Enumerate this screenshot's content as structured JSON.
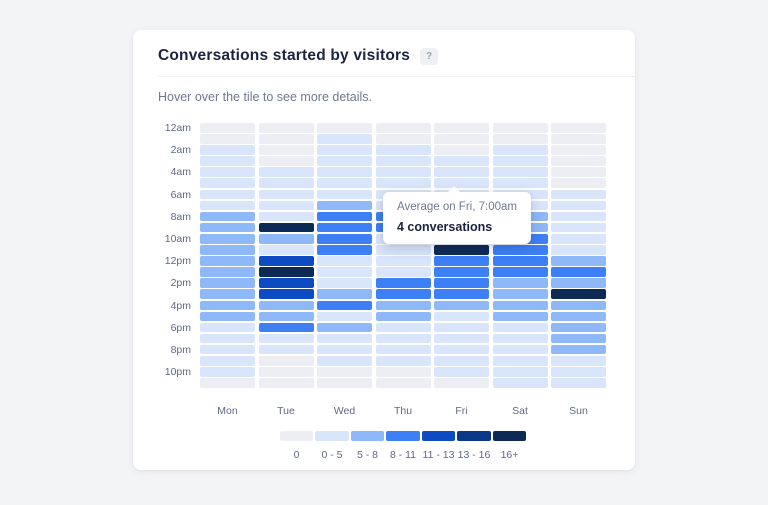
{
  "card": {
    "title": "Conversations started by visitors",
    "help_label": "?",
    "subtitle": "Hover over the tile to see more details."
  },
  "tooltip": {
    "line1": "Average on Fri, 7:00am",
    "line2": "4 conversations"
  },
  "chart_data": {
    "type": "heatmap",
    "title": "Conversations started by visitors",
    "x_labels": [
      "Mon",
      "Tue",
      "Wed",
      "Thu",
      "Fri",
      "Sat",
      "Sun"
    ],
    "y_labels": [
      "12am",
      "2am",
      "4am",
      "6am",
      "8am",
      "10am",
      "12pm",
      "2pm",
      "4pm",
      "6pm",
      "8pm",
      "10pm"
    ],
    "y_unit": "hour of day (24 rows, one per hour, labeled every 2 hours)",
    "legend_position": "bottom-center",
    "legend": [
      {
        "label": "0",
        "color": "#eceef4"
      },
      {
        "label": "0 - 5",
        "color": "#d9e5fa"
      },
      {
        "label": "5 - 8",
        "color": "#8fb8f8"
      },
      {
        "label": "8 - 11",
        "color": "#3d7ff5"
      },
      {
        "label": "11 - 13",
        "color": "#0c4bc2"
      },
      {
        "label": "13 - 16",
        "color": "#0a3787"
      },
      {
        "label": "16+",
        "color": "#0d2a55"
      }
    ],
    "grid_note": "rows = hours 12am..11pm top to bottom; columns = Mon..Sun; values are legend bucket indices 0-6",
    "grid": [
      [
        0,
        0,
        0,
        0,
        0,
        0,
        0
      ],
      [
        0,
        0,
        1,
        0,
        0,
        0,
        0
      ],
      [
        1,
        0,
        1,
        1,
        0,
        1,
        0
      ],
      [
        1,
        0,
        1,
        1,
        1,
        1,
        0
      ],
      [
        1,
        1,
        1,
        1,
        1,
        1,
        0
      ],
      [
        1,
        1,
        1,
        1,
        1,
        1,
        0
      ],
      [
        1,
        1,
        1,
        1,
        1,
        1,
        1
      ],
      [
        1,
        1,
        2,
        1,
        1,
        1,
        1
      ],
      [
        2,
        1,
        3,
        3,
        2,
        2,
        1
      ],
      [
        2,
        6,
        3,
        3,
        3,
        2,
        1
      ],
      [
        2,
        2,
        3,
        1,
        3,
        3,
        1
      ],
      [
        2,
        1,
        3,
        1,
        6,
        3,
        1
      ],
      [
        2,
        4,
        1,
        1,
        3,
        3,
        2
      ],
      [
        2,
        6,
        1,
        1,
        3,
        3,
        3
      ],
      [
        2,
        4,
        1,
        3,
        3,
        2,
        2
      ],
      [
        2,
        4,
        2,
        3,
        3,
        2,
        6
      ],
      [
        2,
        2,
        3,
        2,
        2,
        2,
        2
      ],
      [
        2,
        2,
        1,
        2,
        1,
        2,
        2
      ],
      [
        1,
        3,
        2,
        1,
        1,
        1,
        2
      ],
      [
        1,
        1,
        1,
        1,
        1,
        1,
        2
      ],
      [
        1,
        1,
        1,
        1,
        1,
        1,
        2
      ],
      [
        1,
        0,
        1,
        1,
        1,
        1,
        1
      ],
      [
        1,
        0,
        0,
        0,
        1,
        1,
        1
      ],
      [
        0,
        0,
        0,
        0,
        0,
        1,
        1
      ]
    ],
    "hovered_tile": {
      "day": "Fri",
      "hour": "7:00am",
      "value": "4 conversations"
    }
  }
}
